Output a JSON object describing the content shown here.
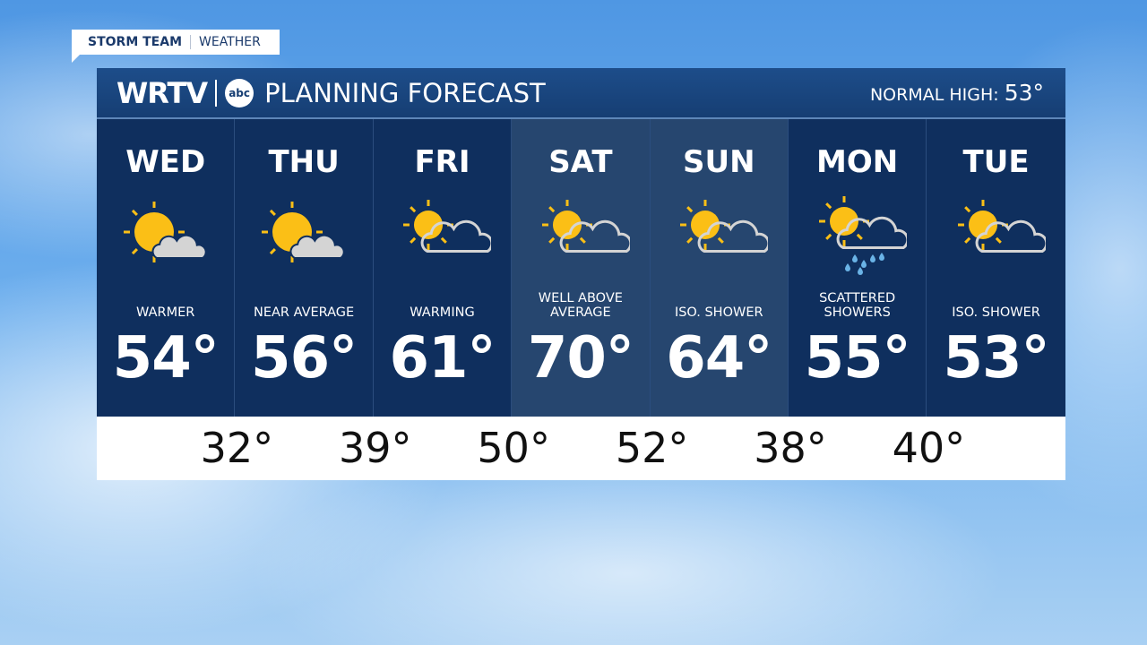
{
  "tag": {
    "left": "STORM TEAM",
    "right": "WEATHER"
  },
  "header": {
    "logo": "WRTV",
    "network": "abc",
    "title": "PLANNING FORECAST",
    "normal_label": "NORMAL HIGH:",
    "normal_value": "53°"
  },
  "colors": {
    "sun": "#fbbf16",
    "cloud": "#d4d4d4",
    "rain": "#6ab3e6",
    "panel": "#0f2f5e",
    "highlight": "#26466f"
  },
  "days": [
    {
      "name": "WED",
      "icon": "mostly-sunny",
      "cond": "WARMER",
      "high": "54°"
    },
    {
      "name": "THU",
      "icon": "mostly-sunny",
      "cond": "NEAR AVERAGE",
      "high": "56°"
    },
    {
      "name": "FRI",
      "icon": "partly-cloudy",
      "cond": "WARMING",
      "high": "61°"
    },
    {
      "name": "SAT",
      "icon": "partly-cloudy",
      "cond": "WELL ABOVE AVERAGE",
      "high": "70°",
      "highlight": true
    },
    {
      "name": "SUN",
      "icon": "partly-cloudy",
      "cond": "ISO. SHOWER",
      "high": "64°",
      "highlight": true
    },
    {
      "name": "MON",
      "icon": "sun-cloud-rain",
      "cond": "SCATTERED SHOWERS",
      "high": "55°"
    },
    {
      "name": "TUE",
      "icon": "partly-cloudy",
      "cond": "ISO. SHOWER",
      "high": "53°"
    }
  ],
  "lows": [
    "32°",
    "39°",
    "50°",
    "52°",
    "38°",
    "40°"
  ]
}
